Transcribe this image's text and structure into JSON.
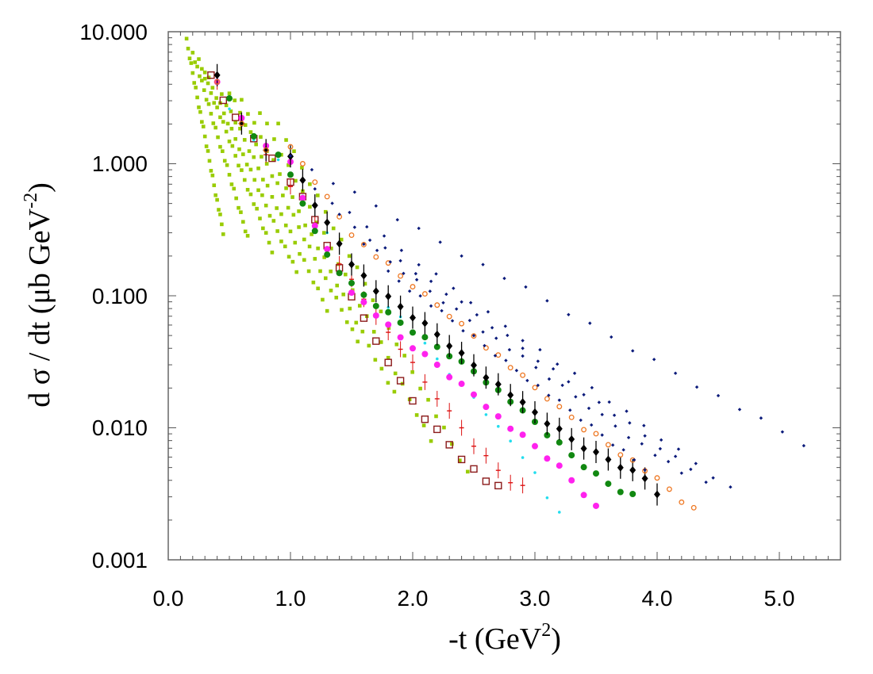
{
  "chart_data": {
    "type": "scatter",
    "title": "",
    "xlabel": {
      "pre": "-t (GeV",
      "sup": "2",
      "post": ")"
    },
    "ylabel": {
      "pre": "d σ / dt (μb GeV",
      "sup": "-2",
      "post": ")"
    },
    "x_scale": "linear",
    "y_scale": "log",
    "xlim": [
      0.0,
      5.5
    ],
    "ylim": [
      0.001,
      10.0
    ],
    "x_ticks": [
      {
        "value": 0.0,
        "label": "0.0"
      },
      {
        "value": 1.0,
        "label": "1.0"
      },
      {
        "value": 2.0,
        "label": "2.0"
      },
      {
        "value": 3.0,
        "label": "3.0"
      },
      {
        "value": 4.0,
        "label": "4.0"
      },
      {
        "value": 5.0,
        "label": "5.0"
      }
    ],
    "y_ticks": [
      {
        "value": 10.0,
        "label": "10.000"
      },
      {
        "value": 1.0,
        "label": "1.000"
      },
      {
        "value": 0.1,
        "label": "0.100"
      },
      {
        "value": 0.01,
        "label": "0.010"
      },
      {
        "value": 0.001,
        "label": "0.001"
      }
    ],
    "grid": false,
    "legend": "none",
    "series": [
      {
        "name": "green squares (9 bands)",
        "marker": "square-filled",
        "color": "#99cc00",
        "bands": [
          {
            "x": [
              0.15,
              0.45
            ],
            "y": [
              8.5,
              0.3
            ]
          },
          {
            "x": [
              0.2,
              0.65
            ],
            "y": [
              7.0,
              0.28
            ]
          },
          {
            "x": [
              0.25,
              0.85
            ],
            "y": [
              6.0,
              0.22
            ]
          },
          {
            "x": [
              0.3,
              1.05
            ],
            "y": [
              5.0,
              0.15
            ]
          },
          {
            "x": [
              0.4,
              1.3
            ],
            "y": [
              4.0,
              0.08
            ]
          },
          {
            "x": [
              0.5,
              1.55
            ],
            "y": [
              3.5,
              0.045
            ]
          },
          {
            "x": [
              0.6,
              1.85
            ],
            "y": [
              3.0,
              0.018
            ]
          },
          {
            "x": [
              0.75,
              2.15
            ],
            "y": [
              2.5,
              0.008
            ]
          },
          {
            "x": [
              0.9,
              2.45
            ],
            "y": [
              2.0,
              0.0045
            ]
          }
        ]
      },
      {
        "name": "open squares",
        "marker": "square-open",
        "color": "#8b1a1a",
        "x": [
          0.35,
          0.45,
          0.55,
          0.7,
          0.85,
          1.0,
          1.1,
          1.2,
          1.3,
          1.4,
          1.5,
          1.6,
          1.7,
          1.8,
          1.9,
          2.0,
          2.1,
          2.2,
          2.3,
          2.4,
          2.5,
          2.6,
          2.7
        ],
        "y": [
          4.5,
          3.0,
          2.3,
          1.5,
          1.1,
          0.75,
          0.55,
          0.38,
          0.25,
          0.16,
          0.1,
          0.065,
          0.045,
          0.032,
          0.022,
          0.016,
          0.012,
          0.0095,
          0.0075,
          0.006,
          0.0048,
          0.004,
          0.0035
        ]
      },
      {
        "name": "red crosses",
        "marker": "cross-errorbar",
        "color": "#dd1111",
        "x": [
          0.4,
          0.6,
          0.8,
          1.0,
          1.2,
          1.4,
          1.5,
          1.6,
          1.7,
          1.8,
          1.9,
          2.0,
          2.1,
          2.2,
          2.3,
          2.4,
          2.5,
          2.6,
          2.7,
          2.8,
          2.9
        ],
        "y": [
          4.0,
          2.0,
          1.2,
          0.65,
          0.35,
          0.18,
          0.13,
          0.095,
          0.072,
          0.052,
          0.04,
          0.03,
          0.022,
          0.017,
          0.013,
          0.01,
          0.0075,
          0.006,
          0.0048,
          0.004,
          0.0036
        ]
      },
      {
        "name": "cyan dots",
        "marker": "dot-small",
        "color": "#22ddee",
        "x": [
          0.5,
          0.7,
          0.9,
          1.1,
          1.3,
          1.5,
          1.6,
          1.7,
          1.8,
          1.9,
          2.0,
          2.1,
          2.2,
          2.3,
          2.4,
          2.5,
          2.6,
          2.7,
          2.8,
          2.9,
          3.0,
          3.1,
          3.2
        ],
        "y": [
          2.5,
          1.5,
          1.1,
          0.55,
          0.3,
          0.18,
          0.14,
          0.11,
          0.085,
          0.068,
          0.055,
          0.042,
          0.033,
          0.026,
          0.021,
          0.017,
          0.013,
          0.01,
          0.008,
          0.0062,
          0.0045,
          0.003,
          0.0022
        ]
      },
      {
        "name": "magenta circles",
        "marker": "circle-filled",
        "color": "#ff22ee",
        "x": [
          0.4,
          0.6,
          0.8,
          1.0,
          1.1,
          1.2,
          1.3,
          1.4,
          1.5,
          1.6,
          1.7,
          1.8,
          1.9,
          2.0,
          2.1,
          2.2,
          2.3,
          2.4,
          2.5,
          2.6,
          2.7,
          2.8,
          2.9,
          3.0,
          3.1,
          3.2,
          3.3,
          3.4,
          3.5
        ],
        "y": [
          4.0,
          2.2,
          1.4,
          1.0,
          0.55,
          0.35,
          0.22,
          0.15,
          0.11,
          0.088,
          0.072,
          0.058,
          0.048,
          0.041,
          0.035,
          0.03,
          0.025,
          0.021,
          0.018,
          0.015,
          0.012,
          0.01,
          0.0085,
          0.0072,
          0.006,
          0.005,
          0.004,
          0.0032,
          0.0025
        ]
      },
      {
        "name": "green circles",
        "marker": "circle-filled",
        "color": "#118811",
        "x": [
          0.5,
          0.7,
          0.9,
          1.0,
          1.1,
          1.2,
          1.3,
          1.4,
          1.5,
          1.6,
          1.7,
          1.8,
          1.9,
          2.0,
          2.1,
          2.2,
          2.3,
          2.4,
          2.5,
          2.6,
          2.7,
          2.8,
          2.9,
          3.0,
          3.1,
          3.2,
          3.3,
          3.4,
          3.5,
          3.6,
          3.7,
          3.8
        ],
        "y": [
          3.0,
          1.6,
          1.2,
          0.8,
          0.5,
          0.32,
          0.2,
          0.15,
          0.13,
          0.1,
          0.085,
          0.072,
          0.062,
          0.054,
          0.047,
          0.041,
          0.036,
          0.031,
          0.027,
          0.023,
          0.019,
          0.016,
          0.013,
          0.011,
          0.009,
          0.0075,
          0.0062,
          0.0052,
          0.0044,
          0.0038,
          0.0034,
          0.0031
        ]
      },
      {
        "name": "black diamonds",
        "marker": "diamond-errorbar",
        "color": "#000000",
        "x": [
          0.4,
          0.6,
          0.8,
          1.0,
          1.1,
          1.2,
          1.3,
          1.4,
          1.5,
          1.6,
          1.7,
          1.8,
          1.9,
          2.0,
          2.1,
          2.2,
          2.3,
          2.4,
          2.5,
          2.6,
          2.7,
          2.8,
          2.9,
          3.0,
          3.1,
          3.2,
          3.3,
          3.4,
          3.5,
          3.6,
          3.7,
          3.8,
          3.9,
          4.0
        ],
        "y": [
          4.5,
          2.0,
          1.3,
          1.1,
          0.75,
          0.5,
          0.35,
          0.25,
          0.18,
          0.14,
          0.11,
          0.095,
          0.082,
          0.07,
          0.06,
          0.051,
          0.043,
          0.036,
          0.03,
          0.025,
          0.021,
          0.018,
          0.015,
          0.013,
          0.011,
          0.0095,
          0.0082,
          0.0072,
          0.0064,
          0.0058,
          0.0052,
          0.0047,
          0.0042,
          0.003
        ]
      },
      {
        "name": "orange open circles",
        "marker": "circle-open",
        "color": "#ee7722",
        "x": [
          0.4,
          0.6,
          0.8,
          1.0,
          1.1,
          1.2,
          1.3,
          1.4,
          1.5,
          1.6,
          1.7,
          1.8,
          1.9,
          2.0,
          2.1,
          2.2,
          2.3,
          2.4,
          2.5,
          2.6,
          2.7,
          2.8,
          2.9,
          3.0,
          3.1,
          3.2,
          3.3,
          3.4,
          3.5,
          3.6,
          3.7,
          3.8,
          3.9,
          4.0,
          4.1,
          4.2,
          4.3
        ],
        "y": [
          4.0,
          2.0,
          1.3,
          1.3,
          1.0,
          0.75,
          0.55,
          0.4,
          0.3,
          0.24,
          0.2,
          0.17,
          0.14,
          0.12,
          0.1,
          0.085,
          0.072,
          0.06,
          0.05,
          0.042,
          0.035,
          0.029,
          0.024,
          0.02,
          0.017,
          0.014,
          0.012,
          0.01,
          0.0088,
          0.0075,
          0.0065,
          0.0056,
          0.0048,
          0.004,
          0.0034,
          0.0028,
          0.0024
        ]
      },
      {
        "name": "navy dots (5 bands)",
        "marker": "diamond-small",
        "color": "#0a1a7a",
        "bands": [
          {
            "x": [
              1.0,
              5.2
            ],
            "y": [
              1.1,
              0.0075
            ]
          },
          {
            "x": [
              1.2,
              4.6
            ],
            "y": [
              0.65,
              0.0035
            ]
          },
          {
            "x": [
              1.4,
              4.4
            ],
            "y": [
              0.4,
              0.004
            ]
          },
          {
            "x": [
              1.6,
              4.2
            ],
            "y": [
              0.25,
              0.0045
            ]
          },
          {
            "x": [
              1.8,
              3.9
            ],
            "y": [
              0.15,
              0.005
            ]
          }
        ]
      }
    ]
  }
}
